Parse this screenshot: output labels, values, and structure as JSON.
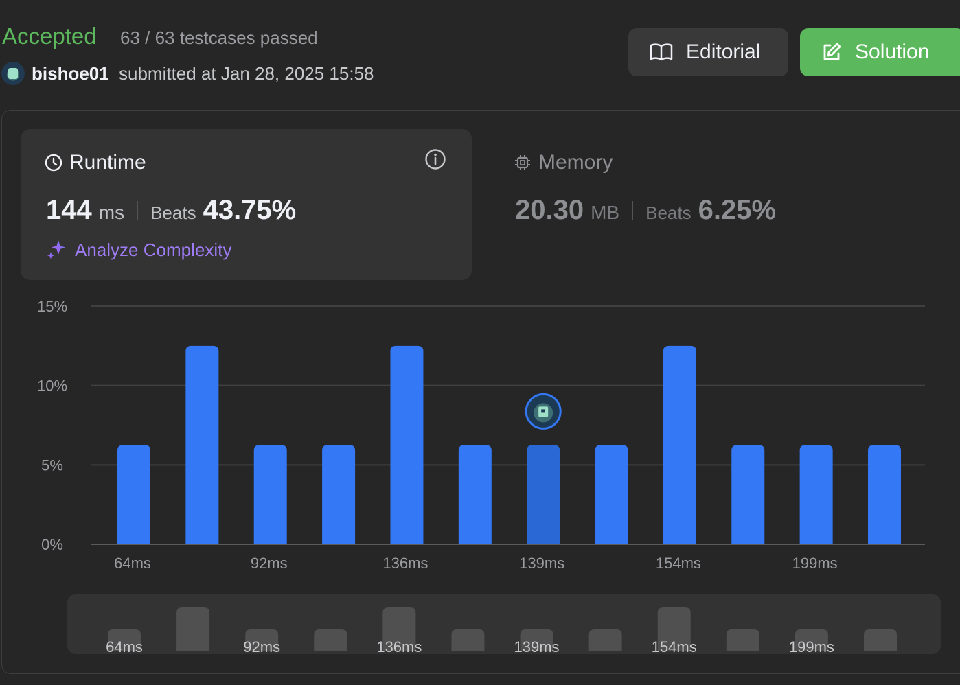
{
  "header": {
    "status": "Accepted",
    "testcases": "63 / 63 testcases passed",
    "username": "bishoe01",
    "submitted": "submitted at Jan 28, 2025 15:58",
    "editorial_label": "Editorial",
    "solution_label": "Solution"
  },
  "runtime": {
    "title": "Runtime",
    "value": "144",
    "unit": "ms",
    "beats_label": "Beats",
    "beats": "43.75%",
    "analyze": "Analyze Complexity"
  },
  "memory": {
    "title": "Memory",
    "value": "20.30",
    "unit": "MB",
    "beats_label": "Beats",
    "beats": "6.25%"
  },
  "colors": {
    "accepted": "#5cb85c",
    "bar": "#3478f6",
    "bar_selected": "#2a68d6",
    "analyze": "#9e7cf5"
  },
  "chart_data": {
    "type": "bar",
    "xlabel": "",
    "ylabel": "",
    "ylim": [
      0,
      15
    ],
    "yticks": [
      "0%",
      "5%",
      "10%",
      "15%"
    ],
    "grid": true,
    "x_tick_labels": [
      "64ms",
      "92ms",
      "136ms",
      "139ms",
      "154ms",
      "199ms"
    ],
    "values": [
      6.25,
      12.5,
      6.25,
      6.25,
      12.5,
      6.25,
      6.25,
      6.25,
      12.5,
      6.25,
      6.25,
      6.25
    ],
    "selected_index": 6
  }
}
